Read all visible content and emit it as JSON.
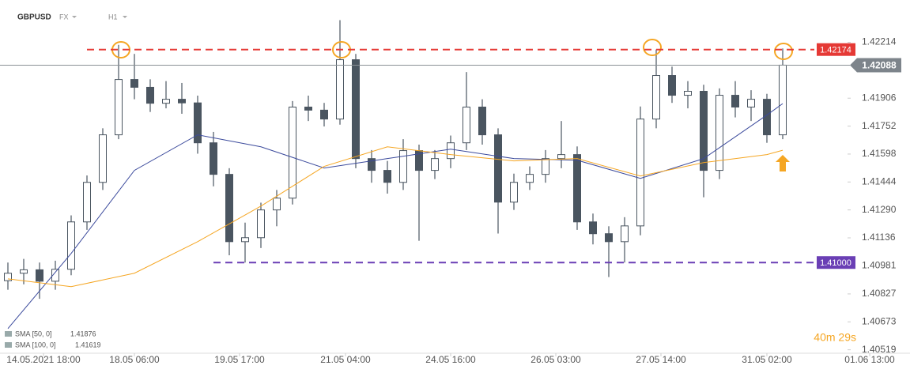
{
  "header": {
    "symbol": "GBPUSD",
    "market": "FX",
    "timeframe": "H1"
  },
  "chart_data": {
    "type": "candlestick",
    "candles": {
      "open": [
        1.409,
        1.40941,
        1.4096,
        1.40897,
        1.40963,
        1.41224,
        1.41442,
        1.41704,
        1.42009,
        1.41966,
        1.41878,
        1.419,
        1.4188,
        1.4166,
        1.41486,
        1.41115,
        1.41137,
        1.4129,
        1.41355,
        1.41857,
        1.4184,
        1.41791,
        1.42118,
        1.41573,
        1.41508,
        1.41442,
        1.41617,
        1.41508,
        1.41573,
        1.4166,
        1.41857,
        1.41704,
        1.41333,
        1.41442,
        1.41486,
        1.41573,
        1.41595,
        1.41224,
        1.41159,
        1.41115,
        1.41202,
        1.41791,
        1.42031,
        1.41922,
        1.41944,
        1.41508,
        1.41922,
        1.41857,
        1.419,
        1.41704
      ],
      "high": [
        1.41,
        1.4102,
        1.41,
        1.4101,
        1.4126,
        1.4148,
        1.4174,
        1.422,
        1.4215,
        1.4201,
        1.42,
        1.4199,
        1.4192,
        1.4172,
        1.4152,
        1.4122,
        1.4133,
        1.414,
        1.4189,
        1.4192,
        1.4188,
        1.42336,
        1.4215,
        1.4162,
        1.4156,
        1.4168,
        1.4165,
        1.4162,
        1.417,
        1.4205,
        1.419,
        1.4174,
        1.4149,
        1.4153,
        1.4162,
        1.4178,
        1.4164,
        1.4127,
        1.412,
        1.4125,
        1.4186,
        1.42174,
        1.4208,
        1.42,
        1.4198,
        1.4196,
        1.42,
        1.4195,
        1.4193,
        1.4218
      ],
      "low": [
        1.4085,
        1.4088,
        1.408,
        1.4085,
        1.4093,
        1.4118,
        1.414,
        1.4168,
        1.419,
        1.4183,
        1.4185,
        1.4182,
        1.416,
        1.4142,
        1.4104,
        1.41,
        1.4108,
        1.412,
        1.4132,
        1.4178,
        1.4175,
        1.4176,
        1.4152,
        1.4144,
        1.4138,
        1.414,
        1.4112,
        1.4146,
        1.4152,
        1.4162,
        1.4165,
        1.4116,
        1.4129,
        1.414,
        1.4144,
        1.4152,
        1.4118,
        1.411,
        1.4092,
        1.41,
        1.4115,
        1.4174,
        1.4188,
        1.4185,
        1.4136,
        1.4146,
        1.418,
        1.4178,
        1.4166,
        1.4168
      ],
      "close": [
        1.40941,
        1.4096,
        1.40897,
        1.40963,
        1.41224,
        1.41442,
        1.41704,
        1.42009,
        1.41966,
        1.41878,
        1.419,
        1.4188,
        1.4166,
        1.41486,
        1.41115,
        1.41137,
        1.4129,
        1.41355,
        1.41857,
        1.4184,
        1.41791,
        1.42118,
        1.41573,
        1.41508,
        1.41442,
        1.41617,
        1.41508,
        1.41573,
        1.4166,
        1.41857,
        1.41704,
        1.41333,
        1.41442,
        1.41486,
        1.41573,
        1.41595,
        1.41224,
        1.41159,
        1.41115,
        1.41202,
        1.41791,
        1.42031,
        1.41922,
        1.41944,
        1.41508,
        1.41922,
        1.41857,
        1.419,
        1.41704,
        1.42088
      ]
    },
    "bull_color": "#ffffff",
    "bear_color": "#4a5560",
    "xlim": [
      -0.5,
      57.05
    ],
    "xticks": [
      {
        "value": 2.25,
        "label": "14.05.2021 18:00"
      },
      {
        "value": 8,
        "label": "18.05 06:00"
      },
      {
        "value": 14.65,
        "label": "19.05 17:00"
      },
      {
        "value": 21.35,
        "label": "21.05 04:00"
      },
      {
        "value": 28,
        "label": "24.05 16:00"
      },
      {
        "value": 34.65,
        "label": "26.05 03:00"
      },
      {
        "value": 41.3,
        "label": "27.05 14:00"
      },
      {
        "value": 48,
        "label": "31.05 02:00"
      },
      {
        "value": 54.5,
        "label": "01.06 13:00"
      }
    ],
    "ylim": [
      1.405,
      1.4236
    ],
    "yticks": [
      1.42214,
      1.41906,
      1.41752,
      1.41598,
      1.41444,
      {
        "value": 1.4129,
        "label": "1.41290"
      },
      1.41136,
      1.40981,
      1.40827,
      1.40673,
      1.40519
    ],
    "series": [
      {
        "name": "SMA [50, 0]",
        "color": "#3b4a9c",
        "x": [
          0,
          4,
          8,
          12,
          16,
          20,
          24,
          28,
          32,
          36,
          40,
          44,
          48,
          49
        ],
        "values": [
          1.40636,
          1.4105,
          1.41508,
          1.41704,
          1.41638,
          1.41521,
          1.41573,
          1.41625,
          1.41573,
          1.41564,
          1.41464,
          1.41573,
          1.41813,
          1.41876
        ]
      },
      {
        "name": "SMA [100, 0]",
        "color": "#f5a623",
        "x": [
          0,
          4,
          8,
          12,
          16,
          20,
          24,
          28,
          32,
          36,
          40,
          44,
          48,
          49
        ],
        "values": [
          1.4091,
          1.40867,
          1.40941,
          1.41115,
          1.41311,
          1.4153,
          1.41638,
          1.41595,
          1.4156,
          1.41573,
          1.41477,
          1.41551,
          1.41595,
          1.41619
        ]
      }
    ],
    "levels": [
      {
        "value": 1.42174,
        "color": "#e53935"
      },
      {
        "value": 1.41,
        "label": "1.41000",
        "color": "#6a3fb5"
      }
    ],
    "current_price": 1.42088,
    "countdown": "40m 29s"
  }
}
